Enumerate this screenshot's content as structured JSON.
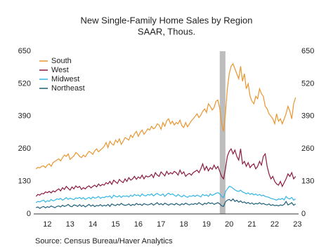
{
  "chart_data": {
    "type": "line",
    "title": "New Single-Family Home Sales by Region",
    "subtitle": "SAAR, Thous.",
    "source": "Source:  Census Bureau/Haver Analytics",
    "legend": "top-left",
    "shaded_x": [
      2020.083,
      2020.333
    ],
    "shade_color": "#bdbdbd",
    "x": [
      2012,
      2012.083,
      2012.167,
      2012.25,
      2012.333,
      2012.417,
      2012.5,
      2012.583,
      2012.667,
      2012.75,
      2012.833,
      2012.917,
      2013,
      2013.083,
      2013.167,
      2013.25,
      2013.333,
      2013.417,
      2013.5,
      2013.583,
      2013.667,
      2013.75,
      2013.833,
      2013.917,
      2014,
      2014.083,
      2014.167,
      2014.25,
      2014.333,
      2014.417,
      2014.5,
      2014.583,
      2014.667,
      2014.75,
      2014.833,
      2014.917,
      2015,
      2015.083,
      2015.167,
      2015.25,
      2015.333,
      2015.417,
      2015.5,
      2015.583,
      2015.667,
      2015.75,
      2015.833,
      2015.917,
      2016,
      2016.083,
      2016.167,
      2016.25,
      2016.333,
      2016.417,
      2016.5,
      2016.583,
      2016.667,
      2016.75,
      2016.833,
      2016.917,
      2017,
      2017.083,
      2017.167,
      2017.25,
      2017.333,
      2017.417,
      2017.5,
      2017.583,
      2017.667,
      2017.75,
      2017.833,
      2017.917,
      2018,
      2018.083,
      2018.167,
      2018.25,
      2018.333,
      2018.417,
      2018.5,
      2018.583,
      2018.667,
      2018.75,
      2018.833,
      2018.917,
      2019,
      2019.083,
      2019.167,
      2019.25,
      2019.333,
      2019.417,
      2019.5,
      2019.583,
      2019.667,
      2019.75,
      2019.833,
      2019.917,
      2020,
      2020.083,
      2020.167,
      2020.25,
      2020.333,
      2020.417,
      2020.5,
      2020.583,
      2020.667,
      2020.75,
      2020.833,
      2020.917,
      2021,
      2021.083,
      2021.167,
      2021.25,
      2021.333,
      2021.417,
      2021.5,
      2021.583,
      2021.667,
      2021.75,
      2021.833,
      2021.917,
      2022,
      2022.083,
      2022.167,
      2022.25,
      2022.333,
      2022.417,
      2022.5,
      2022.583,
      2022.667,
      2022.75,
      2022.833,
      2022.917,
      2023,
      2023.083,
      2023.167,
      2023.25,
      2023.333,
      2023.417
    ],
    "series": [
      {
        "name": "South",
        "color": "#e8962e",
        "values": [
          180,
          186,
          184,
          190,
          192,
          185,
          195,
          200,
          190,
          205,
          210,
          215,
          220,
          212,
          225,
          235,
          230,
          240,
          218,
          225,
          232,
          245,
          240,
          230,
          225,
          235,
          228,
          240,
          250,
          245,
          238,
          252,
          260,
          248,
          255,
          262,
          270,
          285,
          265,
          290,
          280,
          275,
          295,
          285,
          300,
          278,
          290,
          305,
          300,
          295,
          315,
          305,
          320,
          330,
          310,
          325,
          335,
          318,
          328,
          340,
          335,
          350,
          340,
          345,
          360,
          355,
          338,
          365,
          350,
          372,
          380,
          360,
          370,
          355,
          365,
          360,
          375,
          352,
          345,
          365,
          348,
          360,
          372,
          380,
          390,
          400,
          385,
          395,
          410,
          420,
          405,
          440,
          430,
          415,
          425,
          450,
          455,
          420,
          360,
          330,
          400,
          500,
          560,
          590,
          600,
          580,
          560,
          540,
          590,
          530,
          560,
          500,
          520,
          470,
          450,
          440,
          470,
          460,
          500,
          480,
          470,
          430,
          420,
          400,
          390,
          380,
          360,
          400,
          370,
          380,
          360,
          380,
          400,
          430,
          410,
          380,
          440,
          465
        ]
      },
      {
        "name": "West",
        "color": "#8b1a3f",
        "values": [
          70,
          78,
          75,
          82,
          80,
          88,
          85,
          90,
          84,
          92,
          88,
          95,
          100,
          92,
          105,
          98,
          110,
          102,
          95,
          108,
          100,
          112,
          105,
          110,
          98,
          105,
          100,
          108,
          112,
          104,
          110,
          115,
          108,
          120,
          112,
          118,
          115,
          125,
          120,
          130,
          118,
          135,
          128,
          122,
          138,
          130,
          125,
          140,
          130,
          145,
          135,
          140,
          150,
          138,
          148,
          142,
          155,
          140,
          152,
          148,
          150,
          158,
          145,
          165,
          155,
          150,
          168,
          160,
          152,
          170,
          158,
          165,
          160,
          170,
          165,
          155,
          175,
          160,
          168,
          150,
          158,
          162,
          155,
          165,
          170,
          175,
          165,
          180,
          200,
          175,
          190,
          172,
          185,
          178,
          195,
          180,
          190,
          170,
          150,
          140,
          180,
          230,
          250,
          260,
          240,
          255,
          230,
          215,
          260,
          200,
          210,
          190,
          205,
          185,
          195,
          200,
          180,
          190,
          210,
          195,
          230,
          240,
          190,
          160,
          140,
          150,
          130,
          120,
          115,
          130,
          110,
          125,
          140,
          160,
          150,
          165,
          140,
          150
        ]
      },
      {
        "name": "Midwest",
        "color": "#33b5e5",
        "values": [
          45,
          50,
          48,
          52,
          55,
          47,
          53,
          50,
          58,
          52,
          55,
          60,
          58,
          62,
          55,
          60,
          65,
          58,
          63,
          60,
          57,
          64,
          62,
          66,
          60,
          65,
          58,
          62,
          66,
          60,
          68,
          63,
          65,
          70,
          62,
          67,
          65,
          70,
          68,
          72,
          63,
          75,
          70,
          68,
          73,
          66,
          72,
          70,
          72,
          68,
          75,
          70,
          78,
          73,
          76,
          70,
          80,
          74,
          72,
          78,
          75,
          80,
          72,
          78,
          82,
          76,
          74,
          80,
          70,
          78,
          83,
          77,
          80,
          75,
          70,
          78,
          72,
          68,
          75,
          70,
          66,
          72,
          70,
          74,
          70,
          75,
          72,
          68,
          78,
          73,
          76,
          70,
          80,
          74,
          78,
          82,
          85,
          80,
          70,
          65,
          88,
          100,
          110,
          108,
          102,
          96,
          92,
          90,
          95,
          88,
          85,
          80,
          84,
          78,
          82,
          76,
          80,
          74,
          78,
          72,
          75,
          70,
          68,
          66,
          62,
          60,
          58,
          55,
          60,
          58,
          62,
          56,
          70,
          62,
          60,
          66,
          55,
          60
        ]
      },
      {
        "name": "Northeast",
        "color": "#1f5f7a",
        "values": [
          25,
          28,
          22,
          27,
          30,
          24,
          29,
          26,
          32,
          28,
          25,
          30,
          32,
          28,
          35,
          30,
          33,
          38,
          31,
          29,
          36,
          34,
          30,
          37,
          30,
          35,
          28,
          33,
          38,
          31,
          36,
          29,
          34,
          32,
          37,
          31,
          35,
          32,
          38,
          30,
          40,
          36,
          33,
          39,
          35,
          42,
          37,
          34,
          36,
          40,
          33,
          38,
          35,
          42,
          37,
          39,
          34,
          41,
          38,
          36,
          38,
          42,
          35,
          40,
          45,
          37,
          41,
          36,
          43,
          39,
          35,
          40,
          40,
          36,
          42,
          38,
          35,
          41,
          37,
          43,
          39,
          36,
          40,
          38,
          42,
          38,
          45,
          40,
          36,
          43,
          39,
          46,
          41,
          44,
          38,
          42,
          45,
          40,
          32,
          30,
          48,
          55,
          58,
          52,
          60,
          50,
          55,
          47,
          52,
          45,
          48,
          42,
          46,
          40,
          44,
          38,
          42,
          40,
          45,
          39,
          42,
          38,
          36,
          40,
          34,
          37,
          33,
          35,
          32,
          36,
          34,
          38,
          50,
          36,
          40,
          45,
          35,
          40
        ]
      }
    ],
    "xlim": [
      2011.9,
      2023.55
    ],
    "xticks": [
      {
        "value": 2012.5,
        "label": "12"
      },
      {
        "value": 2013.5,
        "label": "13"
      },
      {
        "value": 2014.5,
        "label": "14"
      },
      {
        "value": 2015.5,
        "label": "15"
      },
      {
        "value": 2016.5,
        "label": "16"
      },
      {
        "value": 2017.5,
        "label": "17"
      },
      {
        "value": 2018.5,
        "label": "18"
      },
      {
        "value": 2019.5,
        "label": "19"
      },
      {
        "value": 2020.5,
        "label": "20"
      },
      {
        "value": 2021.5,
        "label": "21"
      },
      {
        "value": 2022.5,
        "label": "22"
      },
      {
        "value": 2023.5,
        "label": "23"
      }
    ],
    "ylim": [
      0,
      650
    ],
    "yticks": [
      0,
      130,
      260,
      390,
      520,
      650
    ],
    "y2lim": [
      0,
      650
    ],
    "y2ticks": [
      0,
      130,
      260,
      390,
      520,
      650
    ]
  }
}
